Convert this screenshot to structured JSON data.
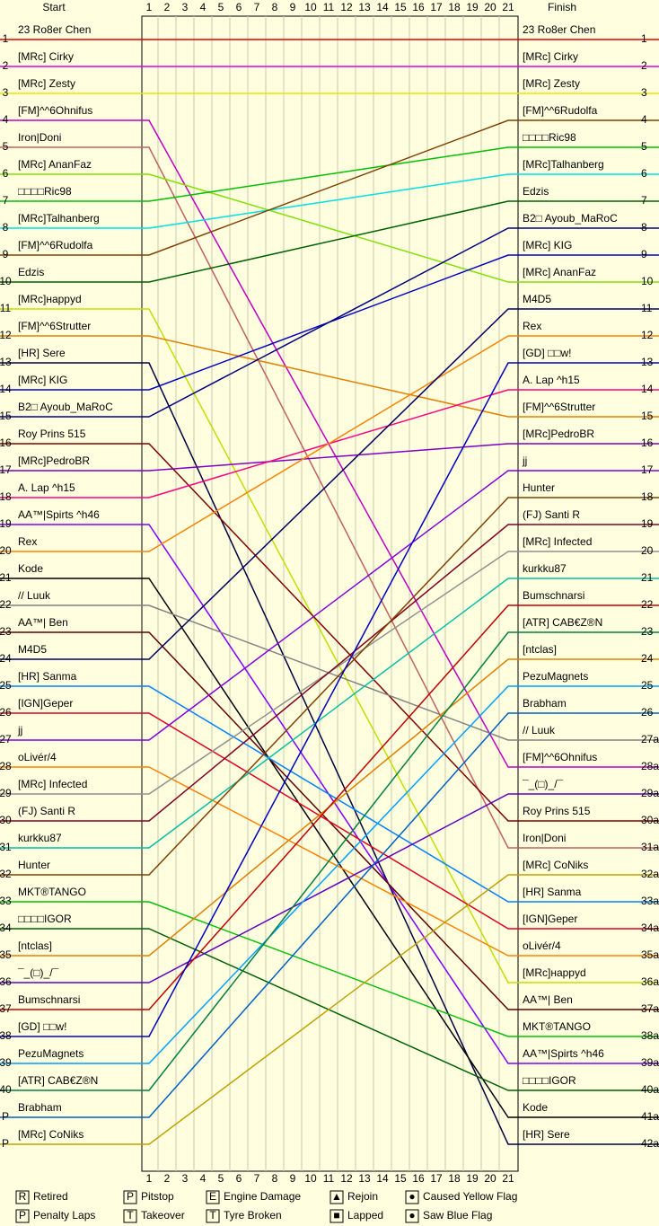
{
  "chart_data": {
    "type": "lapchart",
    "start_title": "Start",
    "finish_title": "Finish",
    "laps": [
      "1",
      "2",
      "3",
      "4",
      "5",
      "6",
      "7",
      "8",
      "9",
      "10",
      "11",
      "12",
      "13",
      "14",
      "15",
      "16",
      "17",
      "18",
      "19",
      "20",
      "21"
    ],
    "start_positions": [
      "1",
      "2",
      "3",
      "4",
      "5",
      "6",
      "7",
      "8",
      "9",
      "10",
      "11",
      "12",
      "13",
      "14",
      "15",
      "16",
      "17",
      "18",
      "19",
      "20",
      "21",
      "22",
      "23",
      "24",
      "25",
      "26",
      "27",
      "28",
      "29",
      "30",
      "31",
      "32",
      "33",
      "34",
      "35",
      "36",
      "37",
      "38",
      "39",
      "40",
      "P",
      "P"
    ],
    "finish_positions": [
      "1",
      "2",
      "3",
      "4",
      "5",
      "6",
      "7",
      "8",
      "9",
      "10",
      "11",
      "12",
      "13",
      "14",
      "15",
      "16",
      "17",
      "18",
      "19",
      "20",
      "21",
      "22",
      "23",
      "24",
      "25",
      "26",
      "27a",
      "28a",
      "29a",
      "30a",
      "31a",
      "32a",
      "33a",
      "34a",
      "35a",
      "36a",
      "37a",
      "38a",
      "39a",
      "40a",
      "41a",
      "42a"
    ],
    "drivers": [
      {
        "name": "23 Ro8er Chen",
        "color": "#e00000"
      },
      {
        "name": "[MRc] Cirky",
        "color": "#e000e0"
      },
      {
        "name": "[MRc] Zesty",
        "color": "#e8e800"
      },
      {
        "name": "[FM]^^6Ohnifus",
        "color": "#c000c0"
      },
      {
        "name": "Iron|Doni",
        "color": "#c06060"
      },
      {
        "name": "[MRc] AnanFaz",
        "color": "#80e000"
      },
      {
        "name": "□□□□Ric98",
        "color": "#00c000"
      },
      {
        "name": "[MRc]Talhanberg",
        "color": "#00e0e0"
      },
      {
        "name": "[FM]^^6Rudolfa",
        "color": "#804000"
      },
      {
        "name": "Edzis",
        "color": "#006000"
      },
      {
        "name": "[MRc]нappyd",
        "color": "#c0e000"
      },
      {
        "name": "[FM]^^6Strutter",
        "color": "#e08000"
      },
      {
        "name": "[HR] Sere",
        "color": "#000040"
      },
      {
        "name": "[MRc] KIG",
        "color": "#0000c0"
      },
      {
        "name": "B2□ Ayoub_MaRoC",
        "color": "#000080"
      },
      {
        "name": "Roy Prins 515",
        "color": "#800000"
      },
      {
        "name": "[MRc]PedroBR",
        "color": "#8000c0"
      },
      {
        "name": "A. Lap ^h15",
        "color": "#ff0080"
      },
      {
        "name": "AA™|Spirts ^h46",
        "color": "#8000ff"
      },
      {
        "name": "Rex",
        "color": "#ff8000"
      },
      {
        "name": "Kode",
        "color": "#000000"
      },
      {
        "name": "// Luuk",
        "color": "#808080"
      },
      {
        "name": "AA™| Ben",
        "color": "#600000"
      },
      {
        "name": "M4D5",
        "color": "#000060"
      },
      {
        "name": "[HR] Sanma",
        "color": "#0080ff"
      },
      {
        "name": "[IGN]Geper",
        "color": "#e00020"
      },
      {
        "name": "jj",
        "color": "#8000e0"
      },
      {
        "name": "oLivér/4",
        "color": "#ff8000"
      },
      {
        "name": "[MRc] Infected",
        "color": "#909090"
      },
      {
        "name": "(FJ) Santi R",
        "color": "#800020"
      },
      {
        "name": "kurkku87",
        "color": "#00c0a0"
      },
      {
        "name": "Hunter",
        "color": "#804000"
      },
      {
        "name": "MKT®TANGO",
        "color": "#00c000"
      },
      {
        "name": "□□□□IGOR",
        "color": "#006000"
      },
      {
        "name": "[ntclas]",
        "color": "#e08000"
      },
      {
        "name": "¯_(□)_/¯",
        "color": "#6000c0"
      },
      {
        "name": "Bumschnarsi",
        "color": "#c00000"
      },
      {
        "name": "[GD] □□w!",
        "color": "#0000c0"
      },
      {
        "name": "PezuMagnets",
        "color": "#00a0ff"
      },
      {
        "name": "[ATR] CAB€Z®N",
        "color": "#008040"
      },
      {
        "name": "Brabham",
        "color": "#0060c0"
      },
      {
        "name": "[MRc] CoNiks",
        "color": "#c0a000"
      }
    ],
    "finish": [
      "23 Ro8er Chen",
      "[MRc] Cirky",
      "[MRc] Zesty",
      "[FM]^^6Rudolfa",
      "□□□□Ric98",
      "[MRc]Talhanberg",
      "Edzis",
      "B2□ Ayoub_MaRoC",
      "[MRc] KIG",
      "[MRc] AnanFaz",
      "M4D5",
      "Rex",
      "[GD] □□w!",
      "A. Lap ^h15",
      "[FM]^^6Strutter",
      "[MRc]PedroBR",
      "jj",
      "Hunter",
      "(FJ) Santi R",
      "[MRc] Infected",
      "kurkku87",
      "Bumschnarsi",
      "[ATR] CAB€Z®N",
      "[ntclas]",
      "PezuMagnets",
      "Brabham",
      "// Luuk",
      "[FM]^^6Ohnifus",
      "¯_(□)_/¯",
      "Roy Prins 515",
      "Iron|Doni",
      "[MRc] CoNiks",
      "[HR] Sanma",
      "[IGN]Geper",
      "oLivér/4",
      "[MRc]нappyd",
      "AA™| Ben",
      "MKT®TANGO",
      "AA™|Spirts ^h46",
      "□□□□IGOR",
      "Kode",
      "[HR] Sere"
    ],
    "legend": [
      {
        "symbol": "R",
        "text": "Retired"
      },
      {
        "symbol": "P",
        "text": "Pitstop"
      },
      {
        "symbol": "E",
        "text": "Engine Damage"
      },
      {
        "symbol": "▲",
        "text": "Rejoin"
      },
      {
        "symbol": "●",
        "text": "Caused Yellow Flag"
      },
      {
        "symbol": "P",
        "text": "Penalty Laps"
      },
      {
        "symbol": "T",
        "text": "Takeover"
      },
      {
        "symbol": "T",
        "text": "Tyre Broken"
      },
      {
        "symbol": "■",
        "text": "Lapped"
      },
      {
        "symbol": "●",
        "text": "Saw Blue Flag"
      }
    ]
  }
}
